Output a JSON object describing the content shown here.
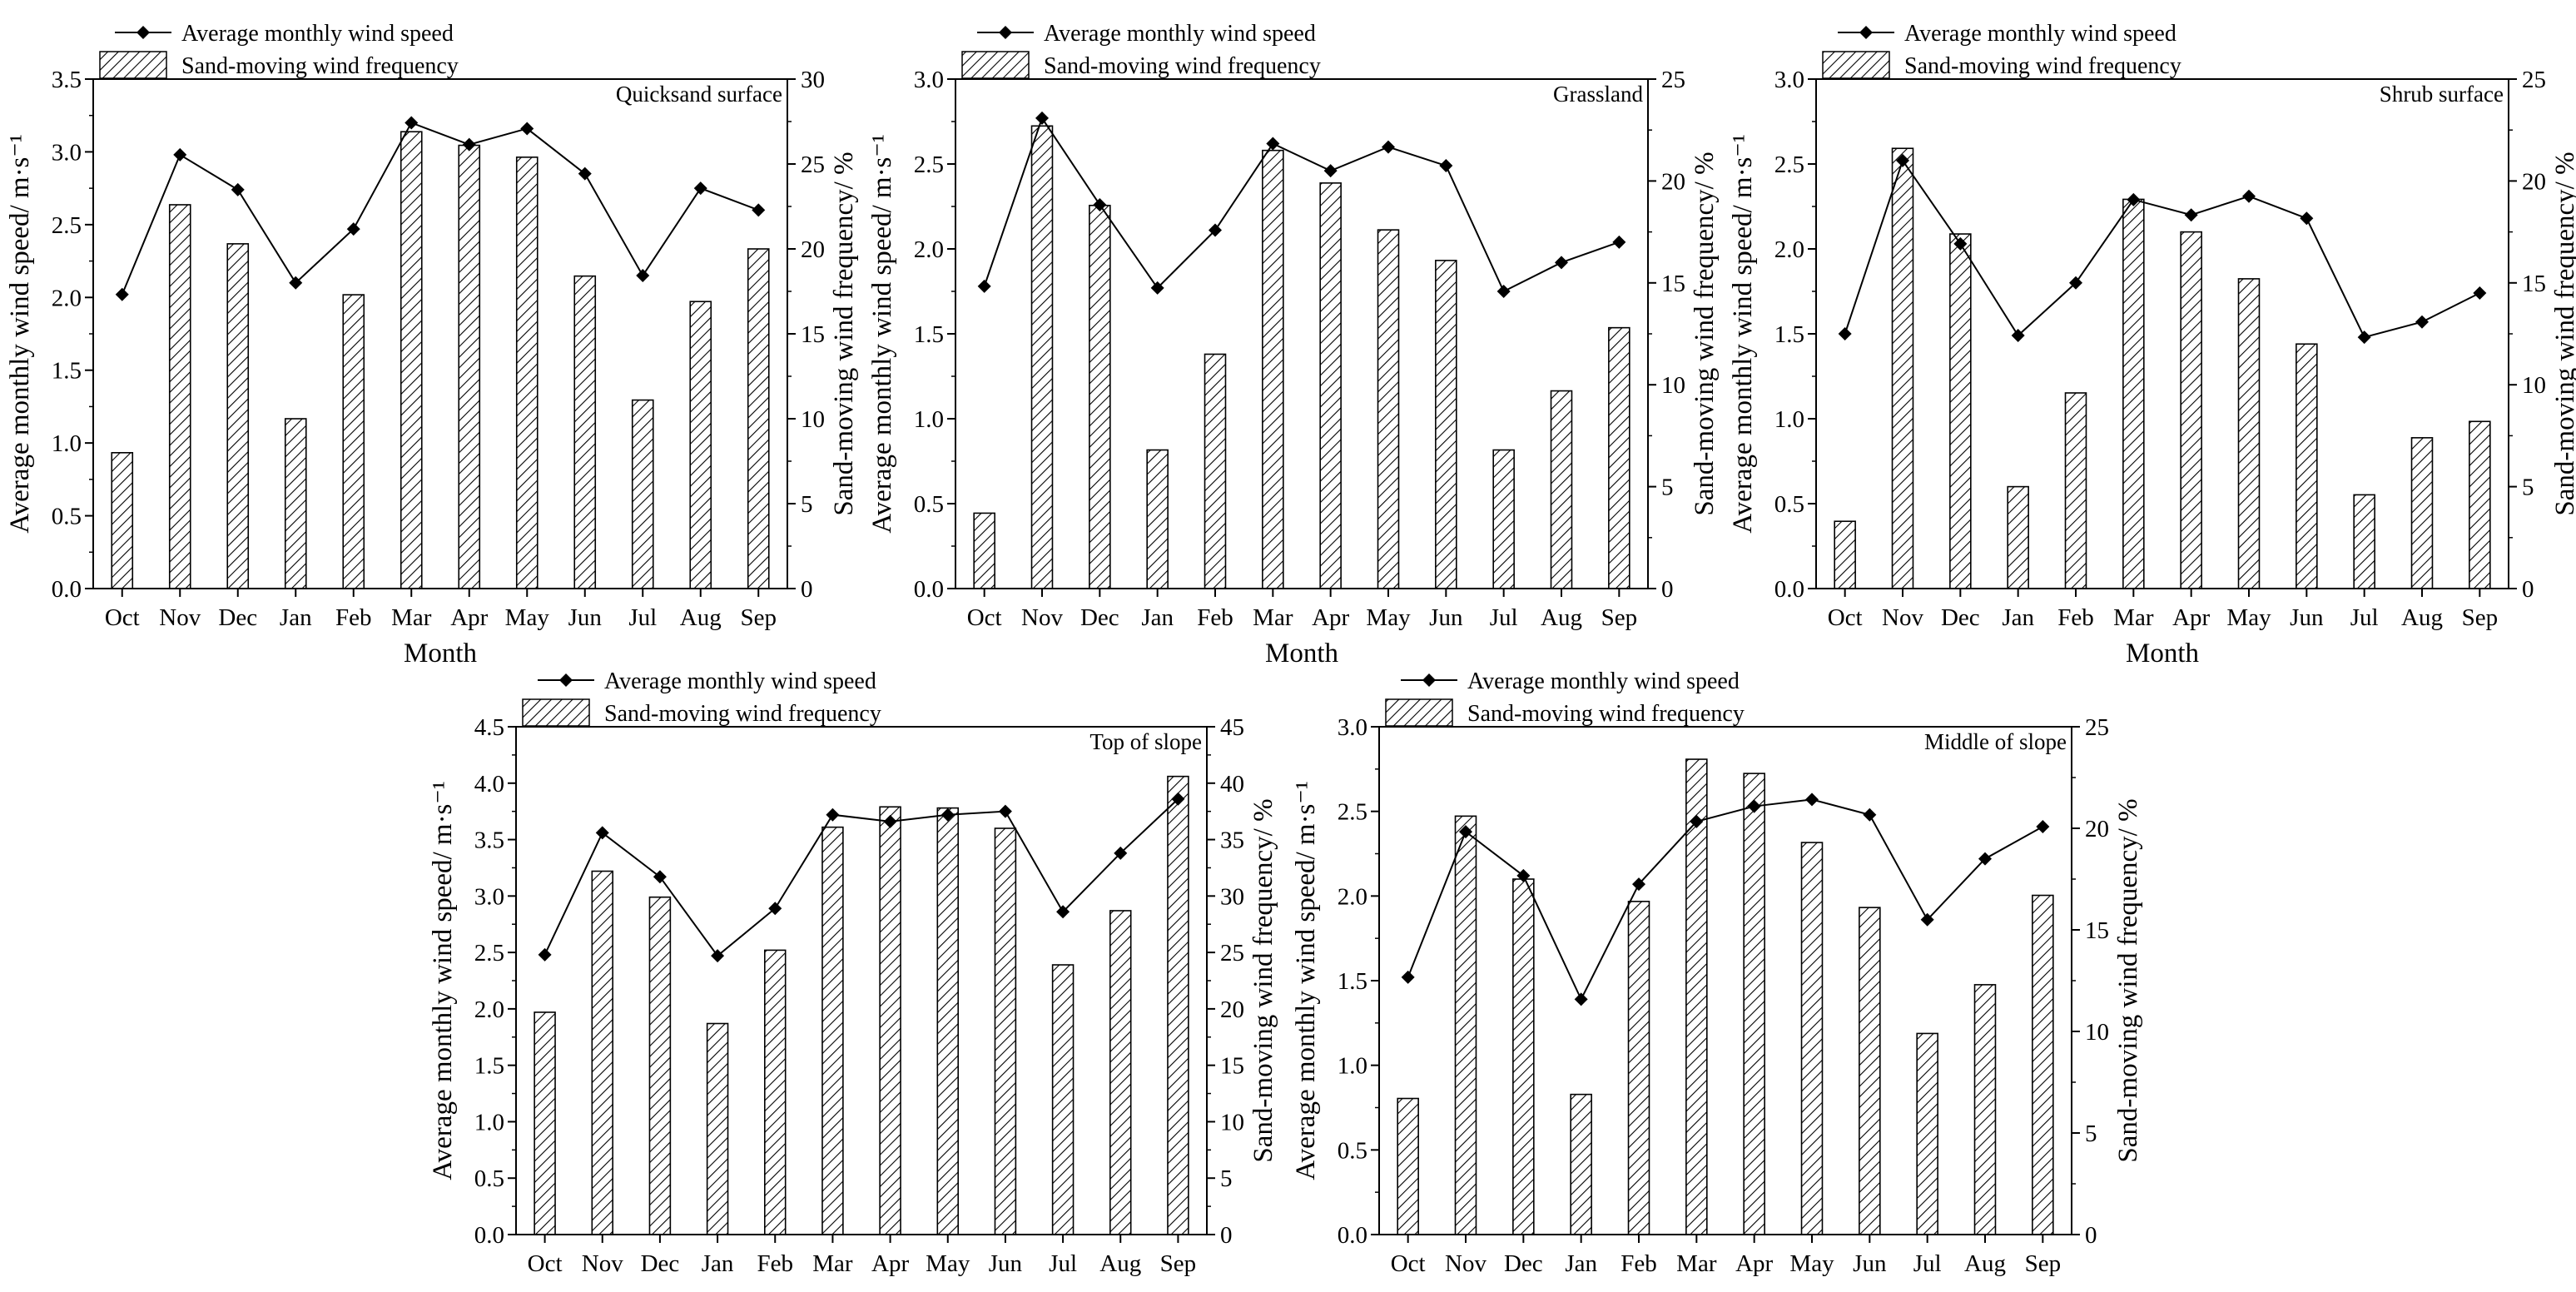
{
  "months": [
    "Oct",
    "Nov",
    "Dec",
    "Jan",
    "Feb",
    "Mar",
    "Apr",
    "May",
    "Jun",
    "Jul",
    "Aug",
    "Sep"
  ],
  "legend": {
    "line_label": "Average monthly wind speed",
    "bar_label": "Sand-moving wind frequency"
  },
  "colors": {
    "axis": "#000000",
    "line": "#000000",
    "bar_hatch": "#000000",
    "bar_fill": "#ffffff"
  },
  "chart_data": [
    {
      "type": "bar+line",
      "title": "Quicksand surface",
      "xlabel": "Month",
      "ylabel_left": "Average monthly wind speed/ m·s⁻¹",
      "ylabel_right": "Sand-moving wind frequency/ %",
      "ylim_left": [
        0,
        3.5
      ],
      "yticks_left": [
        "0.0",
        "0.5",
        "1.0",
        "1.5",
        "2.0",
        "2.5",
        "3.0",
        "3.5"
      ],
      "ylim_right": [
        0,
        30
      ],
      "yticks_right": [
        "0",
        "5",
        "10",
        "15",
        "20",
        "25",
        "30"
      ],
      "categories": [
        "Oct",
        "Nov",
        "Dec",
        "Jan",
        "Feb",
        "Mar",
        "Apr",
        "May",
        "Jun",
        "Jul",
        "Aug",
        "Sep"
      ],
      "series": [
        {
          "name": "Sand-moving wind frequency",
          "kind": "bar",
          "axis": "right",
          "values": [
            8.0,
            22.6,
            20.3,
            10.0,
            17.3,
            26.9,
            26.1,
            25.4,
            18.4,
            11.1,
            16.9,
            20.0
          ]
        },
        {
          "name": "Average monthly wind speed",
          "kind": "line",
          "axis": "left",
          "values": [
            2.02,
            2.98,
            2.74,
            2.1,
            2.47,
            3.2,
            3.05,
            3.16,
            2.85,
            2.15,
            2.75,
            2.6
          ]
        }
      ]
    },
    {
      "type": "bar+line",
      "title": "Grassland",
      "xlabel": "Month",
      "ylabel_left": "Average monthly wind speed/ m·s⁻¹",
      "ylabel_right": "Sand-moving wind frequency/ %",
      "ylim_left": [
        0,
        3.0
      ],
      "yticks_left": [
        "0.0",
        "0.5",
        "1.0",
        "1.5",
        "2.0",
        "2.5",
        "3.0"
      ],
      "ylim_right": [
        0,
        25
      ],
      "yticks_right": [
        "0",
        "5",
        "10",
        "15",
        "20",
        "25"
      ],
      "categories": [
        "Oct",
        "Nov",
        "Dec",
        "Jan",
        "Feb",
        "Mar",
        "Apr",
        "May",
        "Jun",
        "Jul",
        "Aug",
        "Sep"
      ],
      "series": [
        {
          "name": "Sand-moving wind frequency",
          "kind": "bar",
          "axis": "right",
          "values": [
            3.7,
            22.7,
            18.8,
            6.8,
            11.5,
            21.5,
            19.9,
            17.6,
            16.1,
            6.8,
            9.7,
            12.8
          ]
        },
        {
          "name": "Average monthly wind speed",
          "kind": "line",
          "axis": "left",
          "values": [
            1.78,
            2.77,
            2.26,
            1.77,
            2.11,
            2.62,
            2.46,
            2.6,
            2.49,
            1.75,
            1.92,
            2.04
          ]
        }
      ]
    },
    {
      "type": "bar+line",
      "title": "Shrub surface",
      "xlabel": "Month",
      "ylabel_left": "Average monthly wind speed/ m·s⁻¹",
      "ylabel_right": "Sand-moving wind frequency/ %",
      "ylim_left": [
        0,
        3.0
      ],
      "yticks_left": [
        "0.0",
        "0.5",
        "1.0",
        "1.5",
        "2.0",
        "2.5",
        "3.0"
      ],
      "ylim_right": [
        0,
        25
      ],
      "yticks_right": [
        "0",
        "5",
        "10",
        "15",
        "20",
        "25"
      ],
      "categories": [
        "Oct",
        "Nov",
        "Dec",
        "Jan",
        "Feb",
        "Mar",
        "Apr",
        "May",
        "Jun",
        "Jul",
        "Aug",
        "Sep"
      ],
      "series": [
        {
          "name": "Sand-moving wind frequency",
          "kind": "bar",
          "axis": "right",
          "values": [
            3.3,
            21.6,
            17.4,
            5.0,
            9.6,
            19.1,
            17.5,
            15.2,
            12.0,
            4.6,
            7.4,
            8.2
          ]
        },
        {
          "name": "Average monthly wind speed",
          "kind": "line",
          "axis": "left",
          "values": [
            1.5,
            2.52,
            2.03,
            1.49,
            1.8,
            2.29,
            2.2,
            2.31,
            2.18,
            1.48,
            1.57,
            1.74
          ]
        }
      ]
    },
    {
      "type": "bar+line",
      "title": "Top of slope",
      "xlabel": "",
      "ylabel_left": "Average monthly wind speed/ m·s⁻¹",
      "ylabel_right": "Sand-moving wind frequency/ %",
      "ylim_left": [
        0,
        4.5
      ],
      "yticks_left": [
        "0.0",
        "0.5",
        "1.0",
        "1.5",
        "2.0",
        "2.5",
        "3.0",
        "3.5",
        "4.0",
        "4.5"
      ],
      "ylim_right": [
        0,
        45
      ],
      "yticks_right": [
        "0",
        "5",
        "10",
        "15",
        "20",
        "25",
        "30",
        "35",
        "40",
        "45"
      ],
      "categories": [
        "Oct",
        "Nov",
        "Dec",
        "Jan",
        "Feb",
        "Mar",
        "Apr",
        "May",
        "Jun",
        "Jul",
        "Aug",
        "Sep"
      ],
      "series": [
        {
          "name": "Sand-moving wind frequency",
          "kind": "bar",
          "axis": "right",
          "values": [
            19.7,
            32.2,
            29.9,
            18.7,
            25.2,
            36.1,
            37.9,
            37.8,
            36.0,
            23.9,
            28.7,
            40.6
          ]
        },
        {
          "name": "Average monthly wind speed",
          "kind": "line",
          "axis": "left",
          "values": [
            2.48,
            3.56,
            3.17,
            2.47,
            2.89,
            3.72,
            3.66,
            3.72,
            3.75,
            2.86,
            3.38,
            3.86
          ]
        }
      ]
    },
    {
      "type": "bar+line",
      "title": "Middle of slope",
      "xlabel": "",
      "ylabel_left": "Average monthly wind speed/ m·s⁻¹",
      "ylabel_right": "Sand-moving wind frequency/ %",
      "ylim_left": [
        0,
        3.0
      ],
      "yticks_left": [
        "0.0",
        "0.5",
        "1.0",
        "1.5",
        "2.0",
        "2.5",
        "3.0"
      ],
      "ylim_right": [
        0,
        25
      ],
      "yticks_right": [
        "0",
        "5",
        "10",
        "15",
        "20",
        "25"
      ],
      "categories": [
        "Oct",
        "Nov",
        "Dec",
        "Jan",
        "Feb",
        "Mar",
        "Apr",
        "May",
        "Jun",
        "Jul",
        "Aug",
        "Sep"
      ],
      "series": [
        {
          "name": "Sand-moving wind frequency",
          "kind": "bar",
          "axis": "right",
          "values": [
            6.7,
            20.6,
            17.5,
            6.9,
            16.4,
            23.4,
            22.7,
            19.3,
            16.1,
            9.9,
            12.3,
            16.7
          ]
        },
        {
          "name": "Average monthly wind speed",
          "kind": "line",
          "axis": "left",
          "values": [
            1.52,
            2.38,
            2.12,
            1.39,
            2.07,
            2.44,
            2.53,
            2.57,
            2.48,
            1.86,
            2.22,
            2.41
          ]
        }
      ]
    }
  ]
}
